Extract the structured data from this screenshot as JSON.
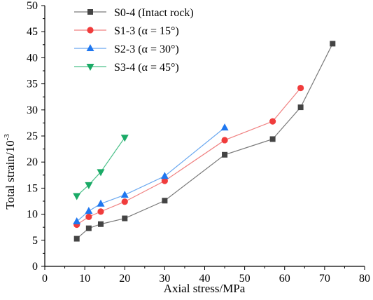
{
  "chart_data": {
    "type": "line",
    "xlabel": "Axial stress/MPa",
    "ylabel": "Total strain/10",
    "ylabel_superscript": "-3",
    "xlim": [
      0,
      80
    ],
    "ylim": [
      0,
      50
    ],
    "x_ticks": [
      "0",
      "10",
      "20",
      "30",
      "40",
      "50",
      "60",
      "70",
      "80"
    ],
    "y_ticks": [
      "0",
      "5",
      "10",
      "15",
      "20",
      "25",
      "30",
      "35",
      "40",
      "45",
      "50"
    ],
    "grid": false,
    "legend_position": "top-left",
    "series": [
      {
        "name": "S0-4 (Intact rock)",
        "marker": "square",
        "marker_color": "#444444",
        "line_color": "#7a7a7a",
        "x": [
          8,
          11,
          14,
          20,
          30,
          45,
          57,
          64,
          72
        ],
        "y": [
          5.3,
          7.3,
          8.1,
          9.2,
          12.6,
          21.4,
          24.4,
          30.5,
          42.7
        ]
      },
      {
        "name": "S1-3 (α = 15°)",
        "marker": "circle",
        "marker_color": "#f03c3c",
        "line_color": "#f08080",
        "x": [
          8,
          11,
          14,
          20,
          30,
          45,
          57,
          64
        ],
        "y": [
          8.0,
          9.5,
          10.5,
          12.4,
          16.4,
          24.2,
          27.8,
          34.2
        ]
      },
      {
        "name": "S2-3 (α = 30°)",
        "marker": "triangle-up",
        "marker_color": "#1f77f0",
        "line_color": "#6aa8f0",
        "x": [
          8,
          11,
          14,
          20,
          30,
          45
        ],
        "y": [
          8.6,
          10.6,
          12.0,
          13.7,
          17.3,
          26.6
        ]
      },
      {
        "name": "S3-4 (α = 45°)",
        "marker": "triangle-down",
        "marker_color": "#1aaa66",
        "line_color": "#4cc08a",
        "x": [
          8,
          11,
          14,
          20
        ],
        "y": [
          13.5,
          15.6,
          18.1,
          24.7
        ]
      }
    ]
  }
}
